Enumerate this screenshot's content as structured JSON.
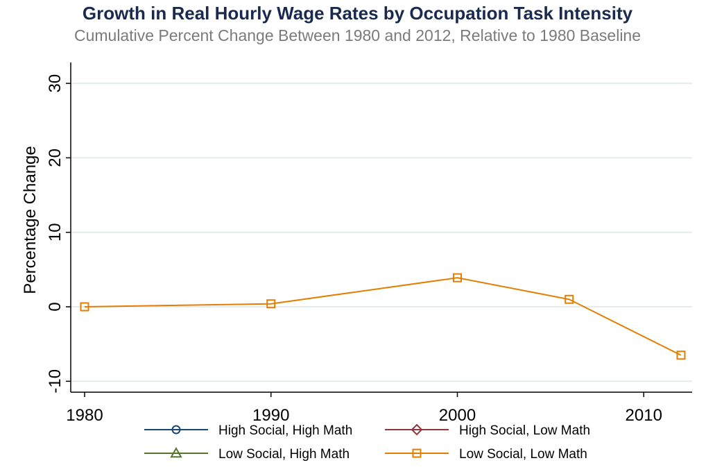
{
  "chart_data": {
    "type": "line",
    "title": "Growth in Real Hourly Wage Rates by Occupation Task Intensity",
    "subtitle": "Cumulative Percent Change Between 1980 and 2012, Relative to 1980 Baseline",
    "xlabel": "",
    "ylabel": "Percentage Change",
    "xlim": [
      1980,
      2012
    ],
    "ylim": [
      -12,
      34
    ],
    "xticks": [
      1980,
      1990,
      2000,
      2010
    ],
    "yticks": [
      -10,
      0,
      10,
      20,
      30
    ],
    "grid": true,
    "legend_position": "bottom",
    "series": [
      {
        "name": "High Social, High Math",
        "color": "#1a476f",
        "marker": "circle",
        "x": [],
        "values": []
      },
      {
        "name": "High Social, Low Math",
        "color": "#90353b",
        "marker": "diamond",
        "x": [],
        "values": []
      },
      {
        "name": "Low Social, High Math",
        "color": "#55752f",
        "marker": "triangle",
        "x": [],
        "values": []
      },
      {
        "name": "Low Social, Low Math",
        "color": "#e37e00",
        "marker": "square",
        "x": [
          1980,
          1990,
          2000,
          2006,
          2012
        ],
        "values": [
          0.0,
          0.4,
          3.9,
          1.0,
          -6.5
        ]
      }
    ]
  }
}
